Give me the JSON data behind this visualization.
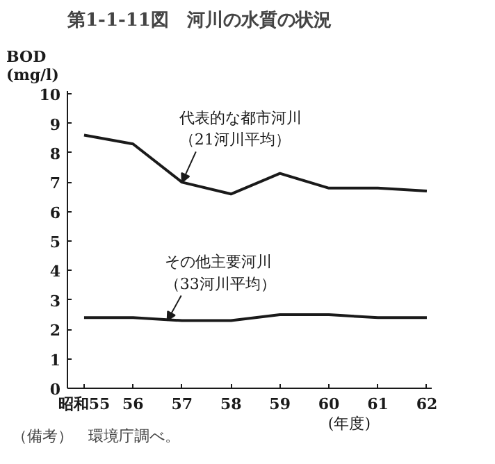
{
  "chart_data": {
    "type": "line",
    "title": "第1-1-11図　河川の水質の状況",
    "ylabel": "BOD\n(mg/l)",
    "xlabel": "(年度)",
    "x": [
      55,
      56,
      57,
      58,
      59,
      60,
      61,
      62
    ],
    "series": [
      {
        "color": "#1a1a1a",
        "values": [
          8.6,
          8.3,
          7.0,
          6.6,
          7.3,
          6.8,
          6.8,
          6.7
        ]
      },
      {
        "color": "#1a1a1a",
        "values": [
          2.4,
          2.4,
          2.3,
          2.3,
          2.5,
          2.5,
          2.4,
          2.4
        ]
      }
    ],
    "xlim": [
      54.66,
      62.1
    ],
    "ylim": [
      0,
      10.1
    ],
    "xticks": [
      {
        "value": 55,
        "label": "昭和55"
      },
      56,
      57,
      58,
      59,
      60,
      61,
      62
    ],
    "yticks": [
      0,
      1,
      2,
      3,
      4,
      5,
      6,
      7,
      8,
      9,
      10
    ],
    "grid": false,
    "marker": "none",
    "line_style": "solid",
    "annotations": [
      {
        "text": "代表的な都市河川（21河川平均）",
        "x": 57,
        "y": 7.0
      },
      {
        "text": "その他主要河川（33河川平均）",
        "x": 56.7,
        "y": 2.3
      },
      "（備考）　環境庁調べ。"
    ]
  }
}
